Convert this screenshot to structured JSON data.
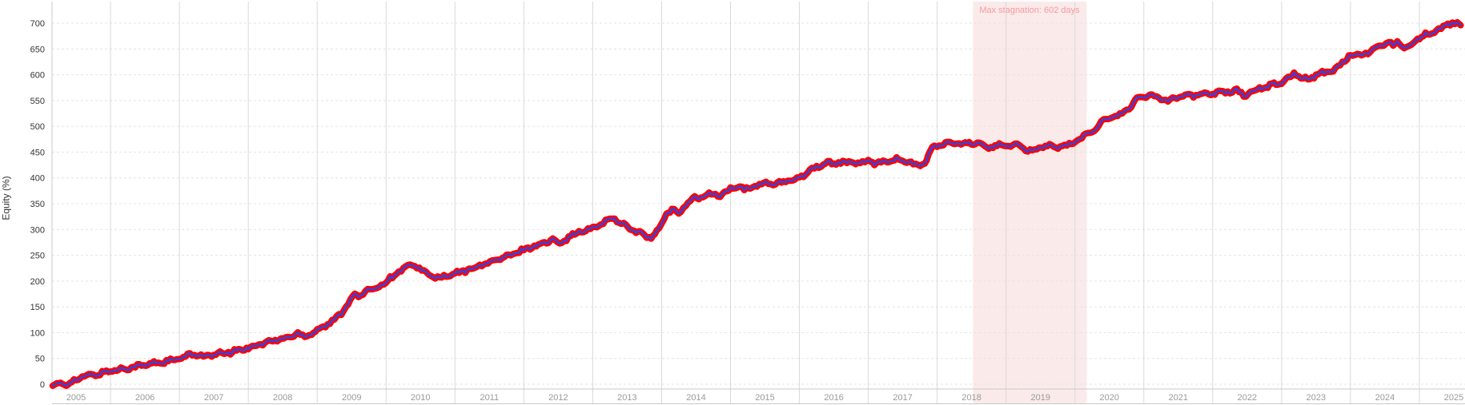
{
  "chart_data": {
    "type": "line",
    "title": "",
    "ylabel": "Equity (%)",
    "xlabel": "",
    "x_tick_labels": [
      "2005",
      "2006",
      "2007",
      "2008",
      "2009",
      "2010",
      "2011",
      "2012",
      "2013",
      "2014",
      "2015",
      "2016",
      "2017",
      "2018",
      "2019",
      "2020",
      "2021",
      "2022",
      "2023",
      "2024",
      "2025"
    ],
    "y_ticks": [
      0,
      50,
      100,
      150,
      200,
      250,
      300,
      350,
      400,
      450,
      500,
      550,
      600,
      650,
      700
    ],
    "ylim": [
      -10,
      730
    ],
    "x_range_years": [
      2005.15,
      2025.66
    ],
    "grid": true,
    "legend": "none",
    "annotation": {
      "label": "Max stagnation: 602 days",
      "start_year": 2018.52,
      "end_year": 2020.17,
      "band_color": "#fbeaea",
      "text_color": "#f59b9b"
    },
    "series": [
      {
        "name": "equity-curve",
        "outer_color": "#ff0000",
        "inner_color": "#4040d0",
        "points": [
          [
            2005.16,
            0
          ],
          [
            2005.22,
            -2
          ],
          [
            2005.3,
            2
          ],
          [
            2005.36,
            -1
          ],
          [
            2005.44,
            5
          ],
          [
            2005.5,
            9
          ],
          [
            2005.62,
            15
          ],
          [
            2005.75,
            18
          ],
          [
            2005.88,
            22
          ],
          [
            2006.0,
            26
          ],
          [
            2006.15,
            29
          ],
          [
            2006.3,
            33
          ],
          [
            2006.45,
            36
          ],
          [
            2006.6,
            40
          ],
          [
            2006.75,
            43
          ],
          [
            2006.9,
            46
          ],
          [
            2007.0,
            49
          ],
          [
            2007.12,
            55
          ],
          [
            2007.25,
            59
          ],
          [
            2007.38,
            53
          ],
          [
            2007.5,
            57
          ],
          [
            2007.65,
            60
          ],
          [
            2007.8,
            64
          ],
          [
            2007.92,
            68
          ],
          [
            2008.0,
            71
          ],
          [
            2008.15,
            77
          ],
          [
            2008.3,
            82
          ],
          [
            2008.45,
            87
          ],
          [
            2008.6,
            91
          ],
          [
            2008.72,
            99
          ],
          [
            2008.82,
            93
          ],
          [
            2008.92,
            99
          ],
          [
            2009.0,
            105
          ],
          [
            2009.12,
            114
          ],
          [
            2009.25,
            124
          ],
          [
            2009.35,
            138
          ],
          [
            2009.45,
            158
          ],
          [
            2009.52,
            172
          ],
          [
            2009.6,
            171
          ],
          [
            2009.7,
            178
          ],
          [
            2009.8,
            185
          ],
          [
            2009.9,
            191
          ],
          [
            2010.0,
            198
          ],
          [
            2010.12,
            212
          ],
          [
            2010.25,
            224
          ],
          [
            2010.35,
            230
          ],
          [
            2010.45,
            228
          ],
          [
            2010.55,
            218
          ],
          [
            2010.65,
            210
          ],
          [
            2010.78,
            206
          ],
          [
            2010.9,
            210
          ],
          [
            2011.0,
            214
          ],
          [
            2011.15,
            220
          ],
          [
            2011.3,
            227
          ],
          [
            2011.45,
            234
          ],
          [
            2011.6,
            241
          ],
          [
            2011.75,
            247
          ],
          [
            2011.9,
            255
          ],
          [
            2012.0,
            261
          ],
          [
            2012.15,
            268
          ],
          [
            2012.3,
            274
          ],
          [
            2012.42,
            280
          ],
          [
            2012.52,
            275
          ],
          [
            2012.65,
            285
          ],
          [
            2012.8,
            295
          ],
          [
            2012.9,
            298
          ],
          [
            2013.0,
            301
          ],
          [
            2013.12,
            312
          ],
          [
            2013.25,
            319
          ],
          [
            2013.32,
            321
          ],
          [
            2013.45,
            310
          ],
          [
            2013.6,
            298
          ],
          [
            2013.75,
            289
          ],
          [
            2013.85,
            283
          ],
          [
            2013.93,
            295
          ],
          [
            2014.0,
            309
          ],
          [
            2014.07,
            331
          ],
          [
            2014.15,
            337
          ],
          [
            2014.25,
            331
          ],
          [
            2014.35,
            350
          ],
          [
            2014.45,
            359
          ],
          [
            2014.6,
            364
          ],
          [
            2014.75,
            369
          ],
          [
            2014.85,
            366
          ],
          [
            2014.95,
            373
          ],
          [
            2015.0,
            379
          ],
          [
            2015.1,
            384
          ],
          [
            2015.2,
            376
          ],
          [
            2015.32,
            383
          ],
          [
            2015.45,
            388
          ],
          [
            2015.55,
            391
          ],
          [
            2015.65,
            387
          ],
          [
            2015.8,
            393
          ],
          [
            2015.9,
            396
          ],
          [
            2016.0,
            401
          ],
          [
            2016.12,
            412
          ],
          [
            2016.25,
            421
          ],
          [
            2016.38,
            429
          ],
          [
            2016.5,
            427
          ],
          [
            2016.6,
            432
          ],
          [
            2016.72,
            428
          ],
          [
            2016.85,
            431
          ],
          [
            2016.95,
            429
          ],
          [
            2017.0,
            432
          ],
          [
            2017.12,
            428
          ],
          [
            2017.25,
            433
          ],
          [
            2017.38,
            436
          ],
          [
            2017.5,
            434
          ],
          [
            2017.62,
            429
          ],
          [
            2017.72,
            422
          ],
          [
            2017.82,
            430
          ],
          [
            2017.9,
            450
          ],
          [
            2017.96,
            461
          ],
          [
            2018.0,
            463
          ],
          [
            2018.12,
            466
          ],
          [
            2018.25,
            468
          ],
          [
            2018.38,
            464
          ],
          [
            2018.52,
            469
          ],
          [
            2018.65,
            462
          ],
          [
            2018.78,
            460
          ],
          [
            2018.9,
            464
          ],
          [
            2019.0,
            461
          ],
          [
            2019.1,
            465
          ],
          [
            2019.22,
            459
          ],
          [
            2019.35,
            452
          ],
          [
            2019.48,
            459
          ],
          [
            2019.6,
            463
          ],
          [
            2019.72,
            459
          ],
          [
            2019.85,
            462
          ],
          [
            2019.95,
            466
          ],
          [
            2020.0,
            470
          ],
          [
            2020.1,
            477
          ],
          [
            2020.22,
            489
          ],
          [
            2020.35,
            502
          ],
          [
            2020.45,
            514
          ],
          [
            2020.55,
            521
          ],
          [
            2020.62,
            517
          ],
          [
            2020.72,
            530
          ],
          [
            2020.82,
            541
          ],
          [
            2020.9,
            552
          ],
          [
            2021.0,
            557
          ],
          [
            2021.12,
            560
          ],
          [
            2021.25,
            555
          ],
          [
            2021.35,
            550
          ],
          [
            2021.45,
            556
          ],
          [
            2021.6,
            561
          ],
          [
            2021.72,
            559
          ],
          [
            2021.85,
            563
          ],
          [
            2021.95,
            562
          ],
          [
            2022.0,
            565
          ],
          [
            2022.12,
            568
          ],
          [
            2022.25,
            566
          ],
          [
            2022.35,
            570
          ],
          [
            2022.45,
            559
          ],
          [
            2022.55,
            568
          ],
          [
            2022.68,
            573
          ],
          [
            2022.8,
            578
          ],
          [
            2022.92,
            582
          ],
          [
            2023.0,
            586
          ],
          [
            2023.1,
            593
          ],
          [
            2023.18,
            604
          ],
          [
            2023.28,
            595
          ],
          [
            2023.38,
            591
          ],
          [
            2023.5,
            600
          ],
          [
            2023.62,
            604
          ],
          [
            2023.75,
            608
          ],
          [
            2023.85,
            619
          ],
          [
            2023.95,
            633
          ],
          [
            2024.0,
            640
          ],
          [
            2024.1,
            637
          ],
          [
            2024.22,
            642
          ],
          [
            2024.32,
            647
          ],
          [
            2024.42,
            659
          ],
          [
            2024.52,
            662
          ],
          [
            2024.62,
            657
          ],
          [
            2024.68,
            664
          ],
          [
            2024.78,
            652
          ],
          [
            2024.88,
            659
          ],
          [
            2024.95,
            667
          ],
          [
            2025.0,
            672
          ],
          [
            2025.12,
            679
          ],
          [
            2025.25,
            686
          ],
          [
            2025.38,
            694
          ],
          [
            2025.48,
            702
          ],
          [
            2025.55,
            699
          ],
          [
            2025.6,
            696
          ]
        ]
      }
    ],
    "style": {
      "background": "#ffffff",
      "v_grid_color": "#d9d9d9",
      "h_grid_color": "#e4e4e4",
      "axis_color": "#c8c8c8",
      "y_tick_color": "#333333",
      "x_tick_color": "#999999"
    }
  }
}
